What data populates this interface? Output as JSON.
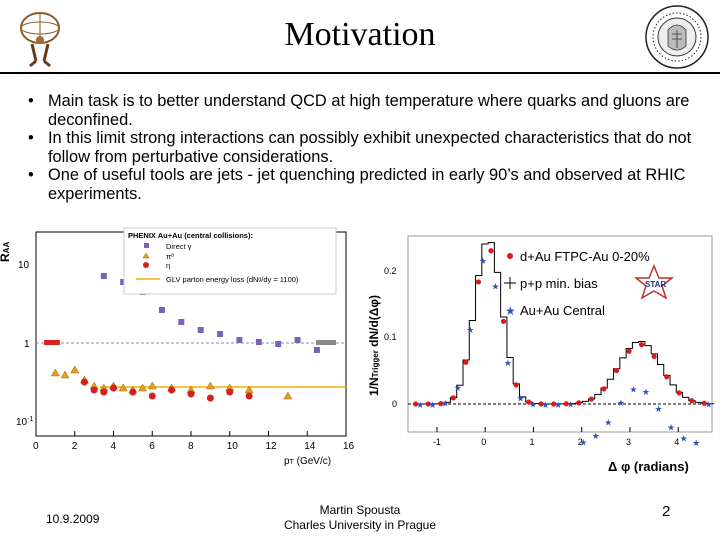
{
  "header": {
    "title": "Motivation"
  },
  "bullets": [
    "Main task is to better understand QCD at high temperature where quarks and gluons are deconfined.",
    "In this limit strong interactions can possibly exhibit unexpected characteristics that do not follow from perturbative considerations.",
    "One of useful tools are jets - jet quenching predicted in early 90’s and observed at RHIC experiments."
  ],
  "phenix_plot": {
    "legend_title": "PHENIX Au+Au (central collisions):",
    "legend_items": [
      "Direct γ",
      "π⁰",
      "η",
      "GLV parton energy loss (dNᵍ/dy = 1100)"
    ],
    "ylabel": "R",
    "ylabel_sub": "AA",
    "ytick_top": "10",
    "ytick_mid": "1",
    "ytick_bot": "10",
    "ytick_bot_exp": "-1",
    "xticks": [
      "0",
      "2",
      "4",
      "6",
      "8",
      "10",
      "12",
      "14",
      "16"
    ],
    "xlabel": "p",
    "xlabel_sub": "T",
    "xlabel_unit": " (GeV/c)"
  },
  "star_plot": {
    "legend_items": [
      "d+Au FTPC-Au 0-20%",
      "p+p min. bias",
      "Au+Au Central"
    ],
    "badge": "STAR",
    "yticks": [
      "0.2",
      "0.1",
      "0"
    ],
    "xticks": [
      "-1",
      "0",
      "1",
      "2",
      "3",
      "4"
    ],
    "xlabel": "Δ φ (radians)",
    "ylabel": "1/N",
    "ylabel_sub": "Trigger",
    "ylabel_rest": " dN/d(Δφ)"
  },
  "footer": {
    "date": "10.9.2009",
    "author": "Martin Spousta",
    "affiliation": "Charles University in Prague",
    "page": "2"
  },
  "colors": {
    "rule": "#000000",
    "direct": "#7b62b8",
    "pi0": "#e8a020",
    "eta": "#d42020",
    "star_red": "#e01818",
    "star_blue": "#3050c0"
  }
}
